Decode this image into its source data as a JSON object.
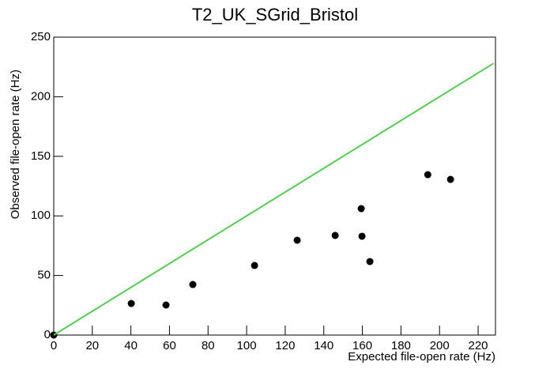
{
  "chart_data": {
    "type": "scatter",
    "title": "T2_UK_SGrid_Bristol",
    "x_label": "Expected file-open rate (Hz)",
    "y_label": "Observed file-open rate (Hz)",
    "series": [
      {
        "type": "scatter",
        "color": "#000000",
        "x": [
          0,
          40.2,
          58.2,
          72.1,
          104.1,
          126.2,
          145.9,
          159.4,
          159.8,
          163.9,
          193.9,
          205.7
        ],
        "values": [
          0,
          26.5,
          25.2,
          42.4,
          58.4,
          79.6,
          83.6,
          106.1,
          82.9,
          61.7,
          134.6,
          130.6
        ]
      },
      {
        "type": "line",
        "color": "#55cc55",
        "x": [
          0,
          228
        ],
        "values": [
          0,
          228
        ]
      }
    ],
    "xlim": [
      0,
      229
    ],
    "xticks": [
      0,
      20,
      40,
      60,
      80,
      100,
      120,
      140,
      160,
      180,
      200,
      220
    ],
    "ylim": [
      0,
      250
    ],
    "yticks": [
      0,
      50,
      100,
      150,
      200,
      250
    ]
  }
}
